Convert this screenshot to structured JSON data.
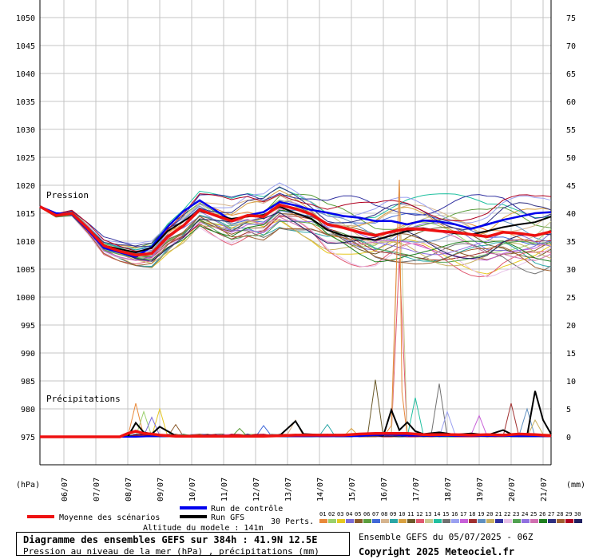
{
  "chart_data": {
    "type": "line",
    "left_axis": {
      "unit": "(hPa)",
      "min": 975,
      "max": 1050,
      "step": 5,
      "ticks": [
        "1050",
        "1045",
        "1040",
        "1035",
        "1030",
        "1025",
        "1020",
        "1015",
        "1010",
        "1005",
        "1000",
        "995",
        "990",
        "985",
        "980",
        "975"
      ]
    },
    "right_axis": {
      "unit": "(mm)",
      "min": 0,
      "max": 75,
      "step": 5,
      "ticks": [
        "75",
        "70",
        "65",
        "60",
        "55",
        "50",
        "45",
        "40",
        "35",
        "30",
        "25",
        "20",
        "15",
        "10",
        "5",
        "0"
      ]
    },
    "x_axis": {
      "start": "05/07 06Z",
      "hours": 384,
      "ticks": [
        "06/07",
        "07/07",
        "08/07",
        "09/07",
        "10/07",
        "11/07",
        "12/07",
        "13/07",
        "14/07",
        "15/07",
        "16/07",
        "17/07",
        "18/07",
        "19/07",
        "20/07",
        "21/07"
      ]
    },
    "labels": {
      "pressure": "Pression",
      "precip": "Précipitations"
    },
    "legend": {
      "mean": "Moyenne des scénarios",
      "control": "Run de contrôle",
      "gfs": "Run GFS",
      "perts_label": "30 Perts.",
      "pert_ids": [
        "01",
        "02",
        "03",
        "04",
        "05",
        "06",
        "07",
        "08",
        "09",
        "10",
        "11",
        "12",
        "13",
        "14",
        "15",
        "16",
        "17",
        "18",
        "19",
        "20",
        "21",
        "22",
        "23",
        "24",
        "25",
        "26",
        "27",
        "28",
        "29",
        "30"
      ]
    },
    "colors": {
      "mean": "#ee1111",
      "control": "#0000ee",
      "gfs": "#000000",
      "grid": "#c4c4c4",
      "members": [
        "#e8893a",
        "#9ad06c",
        "#e6c820",
        "#7a6cd8",
        "#8b5a2b",
        "#5c9e3e",
        "#4068d8",
        "#d6b48e",
        "#2aa6a6",
        "#d8a040",
        "#6b5a2a",
        "#e05870",
        "#c8c890",
        "#20c0a0",
        "#707070",
        "#9aa0f0",
        "#c860d8",
        "#a03030",
        "#6090c0",
        "#c8b060",
        "#3030a0",
        "#e8c0e8",
        "#50a050",
        "#9070e0",
        "#d070b0",
        "#208020",
        "#303080",
        "#a06030",
        "#b00020",
        "#202060"
      ]
    },
    "mean_pressure": [
      [
        0,
        1016.2
      ],
      [
        12,
        1014.6
      ],
      [
        24,
        1015.0
      ],
      [
        36,
        1012.3
      ],
      [
        48,
        1009.2
      ],
      [
        60,
        1008.2
      ],
      [
        72,
        1007.5
      ],
      [
        84,
        1007.8
      ],
      [
        96,
        1010.8
      ],
      [
        108,
        1012.8
      ],
      [
        120,
        1015.6
      ],
      [
        132,
        1014.6
      ],
      [
        144,
        1013.6
      ],
      [
        156,
        1014.6
      ],
      [
        168,
        1014.4
      ],
      [
        180,
        1016.5
      ],
      [
        192,
        1015.8
      ],
      [
        204,
        1014.8
      ],
      [
        216,
        1013.0
      ],
      [
        228,
        1012.4
      ],
      [
        240,
        1011.6
      ],
      [
        252,
        1011.0
      ],
      [
        264,
        1011.7
      ],
      [
        276,
        1012.2
      ],
      [
        288,
        1012.1
      ],
      [
        300,
        1011.8
      ],
      [
        312,
        1011.6
      ],
      [
        324,
        1011.2
      ],
      [
        336,
        1010.8
      ],
      [
        348,
        1011.6
      ],
      [
        360,
        1011.4
      ],
      [
        372,
        1011.0
      ],
      [
        384,
        1011.7
      ]
    ],
    "control_pressure": [
      [
        0,
        1016.2
      ],
      [
        12,
        1015.0
      ],
      [
        24,
        1014.8
      ],
      [
        36,
        1012.0
      ],
      [
        48,
        1008.8
      ],
      [
        60,
        1008.0
      ],
      [
        72,
        1007.2
      ],
      [
        84,
        1009.0
      ],
      [
        96,
        1012.6
      ],
      [
        108,
        1015.4
      ],
      [
        120,
        1017.3
      ],
      [
        132,
        1015.5
      ],
      [
        144,
        1013.7
      ],
      [
        156,
        1014.6
      ],
      [
        168,
        1015.2
      ],
      [
        180,
        1017.0
      ],
      [
        192,
        1016.4
      ],
      [
        204,
        1015.6
      ],
      [
        216,
        1015.1
      ],
      [
        228,
        1014.5
      ],
      [
        240,
        1014.2
      ],
      [
        252,
        1013.6
      ],
      [
        264,
        1013.6
      ],
      [
        276,
        1013.0
      ],
      [
        288,
        1013.7
      ],
      [
        300,
        1013.5
      ],
      [
        312,
        1013.0
      ],
      [
        324,
        1012.2
      ],
      [
        336,
        1013.0
      ],
      [
        348,
        1013.8
      ],
      [
        360,
        1014.4
      ],
      [
        372,
        1015.0
      ],
      [
        384,
        1015.2
      ]
    ],
    "gfs_pressure": [
      [
        0,
        1016.2
      ],
      [
        12,
        1014.6
      ],
      [
        24,
        1015.0
      ],
      [
        36,
        1012.3
      ],
      [
        48,
        1009.2
      ],
      [
        60,
        1008.6
      ],
      [
        72,
        1008.0
      ],
      [
        84,
        1008.8
      ],
      [
        96,
        1011.8
      ],
      [
        108,
        1013.6
      ],
      [
        120,
        1015.4
      ],
      [
        132,
        1014.6
      ],
      [
        144,
        1014.0
      ],
      [
        156,
        1014.4
      ],
      [
        168,
        1014.7
      ],
      [
        180,
        1016.2
      ],
      [
        192,
        1015.0
      ],
      [
        204,
        1014.0
      ],
      [
        216,
        1012.0
      ],
      [
        228,
        1011.0
      ],
      [
        240,
        1010.6
      ],
      [
        252,
        1010.2
      ],
      [
        264,
        1011.0
      ],
      [
        276,
        1011.8
      ],
      [
        288,
        1012.3
      ],
      [
        300,
        1011.8
      ],
      [
        312,
        1011.4
      ],
      [
        324,
        1011.2
      ],
      [
        336,
        1011.8
      ],
      [
        348,
        1012.5
      ],
      [
        360,
        1013.0
      ],
      [
        372,
        1013.4
      ],
      [
        384,
        1014.4
      ]
    ],
    "mean_precip": [
      [
        0,
        0
      ],
      [
        60,
        0
      ],
      [
        66,
        0.6
      ],
      [
        72,
        1.0
      ],
      [
        78,
        0.6
      ],
      [
        84,
        0.5
      ],
      [
        90,
        0.3
      ],
      [
        102,
        0.1
      ],
      [
        120,
        0.1
      ],
      [
        144,
        0.1
      ],
      [
        168,
        0.1
      ],
      [
        180,
        0.2
      ],
      [
        192,
        0.3
      ],
      [
        204,
        0.3
      ],
      [
        216,
        0.3
      ],
      [
        228,
        0.3
      ],
      [
        240,
        0.5
      ],
      [
        252,
        0.6
      ],
      [
        264,
        0.6
      ],
      [
        276,
        0.6
      ],
      [
        288,
        0.4
      ],
      [
        300,
        0.4
      ],
      [
        312,
        0.4
      ],
      [
        324,
        0.3
      ],
      [
        336,
        0.4
      ],
      [
        348,
        0.3
      ],
      [
        360,
        0.5
      ],
      [
        372,
        0.4
      ],
      [
        384,
        0.2
      ]
    ],
    "control_precip": [
      [
        0,
        0
      ],
      [
        60,
        0
      ],
      [
        72,
        0
      ],
      [
        84,
        0.1
      ],
      [
        240,
        0.1
      ],
      [
        252,
        0.3
      ],
      [
        264,
        0.4
      ],
      [
        276,
        0.2
      ],
      [
        288,
        0.2
      ],
      [
        384,
        0.1
      ]
    ],
    "gfs_precip": [
      [
        0,
        0
      ],
      [
        66,
        0
      ],
      [
        72,
        2.5
      ],
      [
        78,
        0.8
      ],
      [
        84,
        0.5
      ],
      [
        90,
        1.8
      ],
      [
        102,
        0.2
      ],
      [
        120,
        0.1
      ],
      [
        180,
        0.2
      ],
      [
        192,
        2.8
      ],
      [
        198,
        0.5
      ],
      [
        216,
        0.3
      ],
      [
        240,
        0.3
      ],
      [
        252,
        0.4
      ],
      [
        258,
        0.2
      ],
      [
        264,
        4.8
      ],
      [
        270,
        1.2
      ],
      [
        276,
        2.6
      ],
      [
        282,
        1.0
      ],
      [
        288,
        0.5
      ],
      [
        300,
        0.8
      ],
      [
        312,
        0.4
      ],
      [
        324,
        0.6
      ],
      [
        336,
        0.3
      ],
      [
        348,
        1.2
      ],
      [
        354,
        0.5
      ],
      [
        366,
        0.2
      ],
      [
        372,
        8.2
      ],
      [
        378,
        3.0
      ],
      [
        384,
        0.5
      ]
    ],
    "member_pressure_spread": [
      [
        0,
        0.1
      ],
      [
        24,
        0.4
      ],
      [
        48,
        1.1
      ],
      [
        72,
        1.6
      ],
      [
        96,
        2.4
      ],
      [
        120,
        2.6
      ],
      [
        144,
        3.0
      ],
      [
        168,
        3.2
      ],
      [
        192,
        3.6
      ],
      [
        216,
        4.0
      ],
      [
        240,
        4.4
      ],
      [
        264,
        4.6
      ],
      [
        288,
        4.8
      ],
      [
        312,
        5.0
      ],
      [
        336,
        5.2
      ],
      [
        360,
        5.4
      ],
      [
        384,
        5.6
      ]
    ],
    "member_precip_spikes": [
      [
        70,
        6.0
      ],
      [
        78,
        4.5
      ],
      [
        90,
        5.0
      ],
      [
        84,
        3.5
      ],
      [
        102,
        2.2
      ],
      [
        150,
        1.5
      ],
      [
        168,
        2.0
      ],
      [
        192,
        3.0
      ],
      [
        216,
        2.2
      ],
      [
        232,
        1.5
      ],
      [
        250,
        10.2
      ],
      [
        268,
        32.0
      ],
      [
        270,
        46.0
      ],
      [
        284,
        7.0
      ],
      [
        298,
        9.5
      ],
      [
        304,
        4.5
      ],
      [
        328,
        3.8
      ],
      [
        354,
        6.0
      ],
      [
        368,
        5.0
      ],
      [
        372,
        3.0
      ]
    ]
  },
  "footer": {
    "title": "Diagramme des ensembles GEFS sur 384h : 41.9N 12.5E",
    "subtitle": "Pression au niveau de la mer (hPa) , précipitations (mm)",
    "altitude": "Altitude du modele : 141m",
    "run_info": "Ensemble GEFS du 05/07/2025 - 06Z",
    "copyright": "Copyright 2025 Meteociel.fr"
  }
}
